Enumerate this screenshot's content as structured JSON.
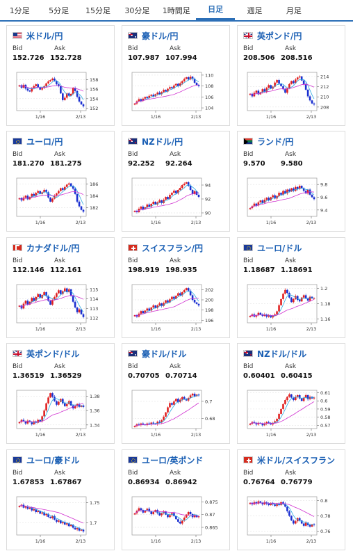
{
  "tabs": [
    {
      "label": "1分足",
      "active": false
    },
    {
      "label": "5分足",
      "active": false
    },
    {
      "label": "15分足",
      "active": false
    },
    {
      "label": "30分足",
      "active": false
    },
    {
      "label": "1時間足",
      "active": false
    },
    {
      "label": "日足",
      "active": true
    },
    {
      "label": "週足",
      "active": false
    },
    {
      "label": "月足",
      "active": false
    },
    {
      "label": "",
      "active": false
    }
  ],
  "labels": {
    "bid": "Bid",
    "ask": "Ask"
  },
  "colors": {
    "up": "#e02020",
    "down": "#1a2fd0",
    "ma_short": "#2aa9e0",
    "ma_long": "#d030d0",
    "accent": "#2c6fb7"
  },
  "pairs": [
    {
      "name": "米ドル/円",
      "flag": "us-flag-icon",
      "bid": "152.726",
      "ask": "152.728",
      "x_labels": [
        "1/16",
        "2/13"
      ],
      "y_ticks": [
        "158",
        "156",
        "154",
        "152"
      ],
      "chart_data": {
        "type": "candlestick",
        "ylim": [
          151.5,
          159.5
        ],
        "close": [
          156.8,
          156.3,
          156.9,
          156.1,
          155.7,
          155.5,
          156.2,
          156.6,
          157.0,
          156.4,
          155.9,
          156.2,
          156.6,
          157.2,
          157.6,
          157.9,
          158.2,
          157.7,
          157.0,
          156.6,
          155.1,
          153.7,
          154.2,
          155.1,
          154.6,
          155.0,
          156.2,
          155.6,
          154.4,
          153.4,
          152.8,
          152.4
        ]
      }
    },
    {
      "name": "豪ドル/円",
      "flag": "au-flag-icon",
      "bid": "107.987",
      "ask": "107.994",
      "x_labels": [
        "1/16",
        "2/13"
      ],
      "y_ticks": [
        "110",
        "108",
        "106",
        "104"
      ],
      "chart_data": {
        "type": "candlestick",
        "ylim": [
          103.5,
          110.5
        ],
        "close": [
          104.8,
          105.2,
          105.6,
          105.3,
          105.7,
          106.0,
          105.8,
          106.2,
          106.4,
          106.1,
          106.5,
          106.8,
          106.5,
          106.9,
          107.3,
          107.0,
          107.5,
          107.8,
          107.6,
          108.1,
          108.4,
          108.0,
          108.5,
          108.9,
          109.3,
          109.6,
          109.2,
          109.7,
          109.3,
          108.6,
          108.2,
          108.0
        ]
      }
    },
    {
      "name": "英ポンド/円",
      "flag": "gb-flag-icon",
      "bid": "208.506",
      "ask": "208.516",
      "x_labels": [
        "1/16",
        "2/13"
      ],
      "y_ticks": [
        "214",
        "212",
        "210",
        "208"
      ],
      "chart_data": {
        "type": "candlestick",
        "ylim": [
          207.3,
          214.8
        ],
        "close": [
          210.6,
          210.1,
          210.8,
          211.2,
          210.5,
          210.9,
          211.5,
          211.0,
          211.8,
          212.3,
          211.6,
          212.0,
          212.8,
          213.3,
          212.6,
          212.1,
          211.5,
          210.8,
          211.7,
          212.5,
          213.1,
          212.7,
          213.4,
          213.8,
          214.0,
          213.2,
          212.5,
          211.4,
          210.1,
          209.3,
          208.7,
          208.5
        ]
      }
    },
    {
      "name": "ユーロ/円",
      "flag": "eu-flag-icon",
      "bid": "181.270",
      "ask": "181.275",
      "x_labels": [
        "1/16",
        "2/13"
      ],
      "y_ticks": [
        "186",
        "184",
        "182"
      ],
      "chart_data": {
        "type": "candlestick",
        "ylim": [
          180.5,
          187.0
        ],
        "close": [
          183.6,
          183.2,
          183.7,
          184.0,
          183.4,
          183.8,
          184.3,
          184.0,
          184.5,
          184.8,
          184.3,
          184.6,
          185.0,
          184.6,
          183.7,
          183.0,
          183.5,
          184.0,
          184.4,
          184.8,
          185.3,
          185.0,
          185.5,
          185.9,
          186.1,
          185.6,
          185.2,
          184.3,
          183.0,
          182.2,
          181.6,
          181.3
        ]
      }
    },
    {
      "name": "NZドル/円",
      "flag": "nz-flag-icon",
      "bid": "92.252",
      "ask": "92.264",
      "x_labels": [
        "1/16",
        "2/13"
      ],
      "y_ticks": [
        "94",
        "92",
        "90"
      ],
      "chart_data": {
        "type": "candlestick",
        "ylim": [
          89.5,
          95.0
        ],
        "close": [
          90.3,
          90.1,
          90.6,
          90.9,
          90.5,
          90.8,
          91.2,
          90.9,
          91.3,
          91.6,
          91.2,
          91.5,
          91.8,
          91.4,
          91.9,
          92.3,
          92.0,
          92.6,
          92.9,
          93.2,
          92.8,
          93.3,
          93.6,
          94.0,
          94.2,
          94.4,
          93.9,
          93.3,
          92.7,
          93.1,
          92.6,
          92.3
        ]
      }
    },
    {
      "name": "ランド/円",
      "flag": "za-flag-icon",
      "bid": "9.570",
      "ask": "9.580",
      "x_labels": [
        "1/16",
        "2/13"
      ],
      "y_ticks": [
        "9.8",
        "9.6",
        "9.4"
      ],
      "chart_data": {
        "type": "candlestick",
        "ylim": [
          9.3,
          9.9
        ],
        "close": [
          9.43,
          9.46,
          9.5,
          9.47,
          9.52,
          9.55,
          9.51,
          9.56,
          9.59,
          9.55,
          9.6,
          9.63,
          9.58,
          9.62,
          9.67,
          9.64,
          9.7,
          9.66,
          9.72,
          9.69,
          9.74,
          9.7,
          9.76,
          9.73,
          9.78,
          9.74,
          9.7,
          9.66,
          9.72,
          9.64,
          9.6,
          9.57
        ]
      }
    },
    {
      "name": "カナダドル/円",
      "flag": "ca-flag-icon",
      "bid": "112.146",
      "ask": "112.161",
      "x_labels": [
        "1/16",
        "2/13"
      ],
      "y_ticks": [
        "115",
        "114",
        "113",
        "112"
      ],
      "chart_data": {
        "type": "candlestick",
        "ylim": [
          111.5,
          115.5
        ],
        "close": [
          113.3,
          113.0,
          113.5,
          113.8,
          113.4,
          113.7,
          114.1,
          113.8,
          114.2,
          114.5,
          114.1,
          114.4,
          114.7,
          114.3,
          113.8,
          113.4,
          113.9,
          114.2,
          114.6,
          114.9,
          114.5,
          114.8,
          115.1,
          114.7,
          115.0,
          114.3,
          113.7,
          113.1,
          112.6,
          112.9,
          112.4,
          112.1
        ]
      }
    },
    {
      "name": "スイスフラン/円",
      "flag": "ch-flag-icon",
      "bid": "198.919",
      "ask": "198.935",
      "x_labels": [
        "1/16",
        "2/13"
      ],
      "y_ticks": [
        "202",
        "200",
        "198",
        "196"
      ],
      "chart_data": {
        "type": "candlestick",
        "ylim": [
          195.5,
          203.0
        ],
        "close": [
          197.0,
          196.7,
          197.3,
          197.8,
          197.4,
          197.9,
          198.3,
          197.9,
          198.5,
          198.9,
          198.4,
          198.9,
          199.3,
          198.8,
          199.4,
          199.9,
          199.5,
          200.1,
          200.6,
          200.2,
          200.8,
          201.3,
          200.9,
          201.5,
          201.9,
          202.3,
          201.8,
          200.9,
          200.0,
          199.5,
          199.2,
          198.9
        ]
      }
    },
    {
      "name": "ユーロ/ドル",
      "flag": "eu-flag-icon",
      "bid": "1.18687",
      "ask": "1.18691",
      "x_labels": [
        "1/16",
        "2/13"
      ],
      "y_ticks": [
        "1.2",
        "1.18",
        "1.16"
      ],
      "chart_data": {
        "type": "candlestick",
        "ylim": [
          1.155,
          1.205
        ],
        "close": [
          1.164,
          1.166,
          1.163,
          1.165,
          1.168,
          1.166,
          1.164,
          1.166,
          1.163,
          1.165,
          1.162,
          1.164,
          1.166,
          1.17,
          1.178,
          1.186,
          1.193,
          1.198,
          1.194,
          1.188,
          1.182,
          1.186,
          1.19,
          1.185,
          1.183,
          1.188,
          1.191,
          1.187,
          1.184,
          1.189,
          1.187,
          1.187
        ]
      }
    },
    {
      "name": "英ポンド/ドル",
      "flag": "gb-flag-icon",
      "bid": "1.36519",
      "ask": "1.36529",
      "x_labels": [
        "1/16",
        "2/13"
      ],
      "y_ticks": [
        "1.38",
        "1.36",
        "1.34"
      ],
      "chart_data": {
        "type": "candlestick",
        "ylim": [
          1.335,
          1.388
        ],
        "close": [
          1.344,
          1.347,
          1.345,
          1.342,
          1.346,
          1.344,
          1.341,
          1.345,
          1.343,
          1.347,
          1.345,
          1.352,
          1.36,
          1.37,
          1.378,
          1.384,
          1.379,
          1.373,
          1.368,
          1.372,
          1.376,
          1.37,
          1.366,
          1.369,
          1.373,
          1.367,
          1.363,
          1.366,
          1.369,
          1.365,
          1.367,
          1.365
        ]
      }
    },
    {
      "name": "豪ドル/ドル",
      "flag": "au-flag-icon",
      "bid": "0.70705",
      "ask": "0.70714",
      "x_labels": [
        "1/16",
        "2/13"
      ],
      "y_ticks": [
        "0.7",
        "0.68"
      ],
      "chart_data": {
        "type": "candlestick",
        "ylim": [
          0.668,
          0.713
        ],
        "close": [
          0.671,
          0.673,
          0.672,
          0.674,
          0.673,
          0.672,
          0.674,
          0.673,
          0.675,
          0.674,
          0.673,
          0.676,
          0.675,
          0.678,
          0.682,
          0.687,
          0.693,
          0.698,
          0.696,
          0.7,
          0.703,
          0.699,
          0.702,
          0.705,
          0.703,
          0.701,
          0.704,
          0.707,
          0.709,
          0.706,
          0.708,
          0.707
        ]
      }
    },
    {
      "name": "NZドル/ドル",
      "flag": "nz-flag-icon",
      "bid": "0.60401",
      "ask": "0.60415",
      "x_labels": [
        "1/16",
        "2/13"
      ],
      "y_ticks": [
        "0.61",
        "0.6",
        "0.59",
        "0.58",
        "0.57"
      ],
      "chart_data": {
        "type": "candlestick",
        "ylim": [
          0.566,
          0.613
        ],
        "close": [
          0.572,
          0.574,
          0.573,
          0.571,
          0.573,
          0.572,
          0.57,
          0.572,
          0.574,
          0.573,
          0.571,
          0.573,
          0.575,
          0.578,
          0.584,
          0.59,
          0.596,
          0.601,
          0.605,
          0.608,
          0.604,
          0.601,
          0.605,
          0.607,
          0.603,
          0.6,
          0.604,
          0.607,
          0.602,
          0.605,
          0.603,
          0.604
        ]
      }
    },
    {
      "name": "ユーロ/豪ドル",
      "flag": "eu-flag-icon",
      "bid": "1.67853",
      "ask": "1.67867",
      "x_labels": [
        "1/16",
        "2/13"
      ],
      "y_ticks": [
        "1.75",
        "1.7"
      ],
      "chart_data": {
        "type": "candlestick",
        "ylim": [
          1.67,
          1.765
        ],
        "close": [
          1.742,
          1.745,
          1.738,
          1.741,
          1.735,
          1.738,
          1.731,
          1.734,
          1.727,
          1.73,
          1.723,
          1.726,
          1.719,
          1.722,
          1.715,
          1.712,
          1.717,
          1.708,
          1.703,
          1.706,
          1.699,
          1.702,
          1.696,
          1.699,
          1.692,
          1.695,
          1.688,
          1.684,
          1.687,
          1.681,
          1.683,
          1.679
        ]
      }
    },
    {
      "name": "ユーロ/英ポンド",
      "flag": "eu-flag-icon",
      "bid": "0.86934",
      "ask": "0.86942",
      "x_labels": [
        "1/16",
        "2/13"
      ],
      "y_ticks": [
        "0.875",
        "0.87",
        "0.865"
      ],
      "chart_data": {
        "type": "candlestick",
        "ylim": [
          0.862,
          0.877
        ],
        "close": [
          0.8705,
          0.8715,
          0.8725,
          0.8718,
          0.8708,
          0.8716,
          0.8723,
          0.8712,
          0.8702,
          0.871,
          0.8718,
          0.8706,
          0.8697,
          0.8705,
          0.8713,
          0.87,
          0.869,
          0.8698,
          0.8706,
          0.8694,
          0.8682,
          0.8672,
          0.8665,
          0.8676,
          0.8688,
          0.87,
          0.871,
          0.8702,
          0.869,
          0.8698,
          0.869,
          0.8693
        ]
      }
    },
    {
      "name": "米ドル/スイスフラン",
      "flag": "ch-flag-icon",
      "bid": "0.76764",
      "ask": "0.76779",
      "x_labels": [
        "1/16",
        "2/13"
      ],
      "y_ticks": [
        "0.8",
        "0.78",
        "0.76"
      ],
      "chart_data": {
        "type": "candlestick",
        "ylim": [
          0.755,
          0.805
        ],
        "close": [
          0.797,
          0.795,
          0.798,
          0.796,
          0.799,
          0.797,
          0.795,
          0.798,
          0.796,
          0.794,
          0.797,
          0.795,
          0.793,
          0.796,
          0.794,
          0.798,
          0.796,
          0.792,
          0.786,
          0.78,
          0.774,
          0.77,
          0.773,
          0.777,
          0.774,
          0.77,
          0.767,
          0.771,
          0.768,
          0.766,
          0.769,
          0.768
        ]
      }
    }
  ]
}
